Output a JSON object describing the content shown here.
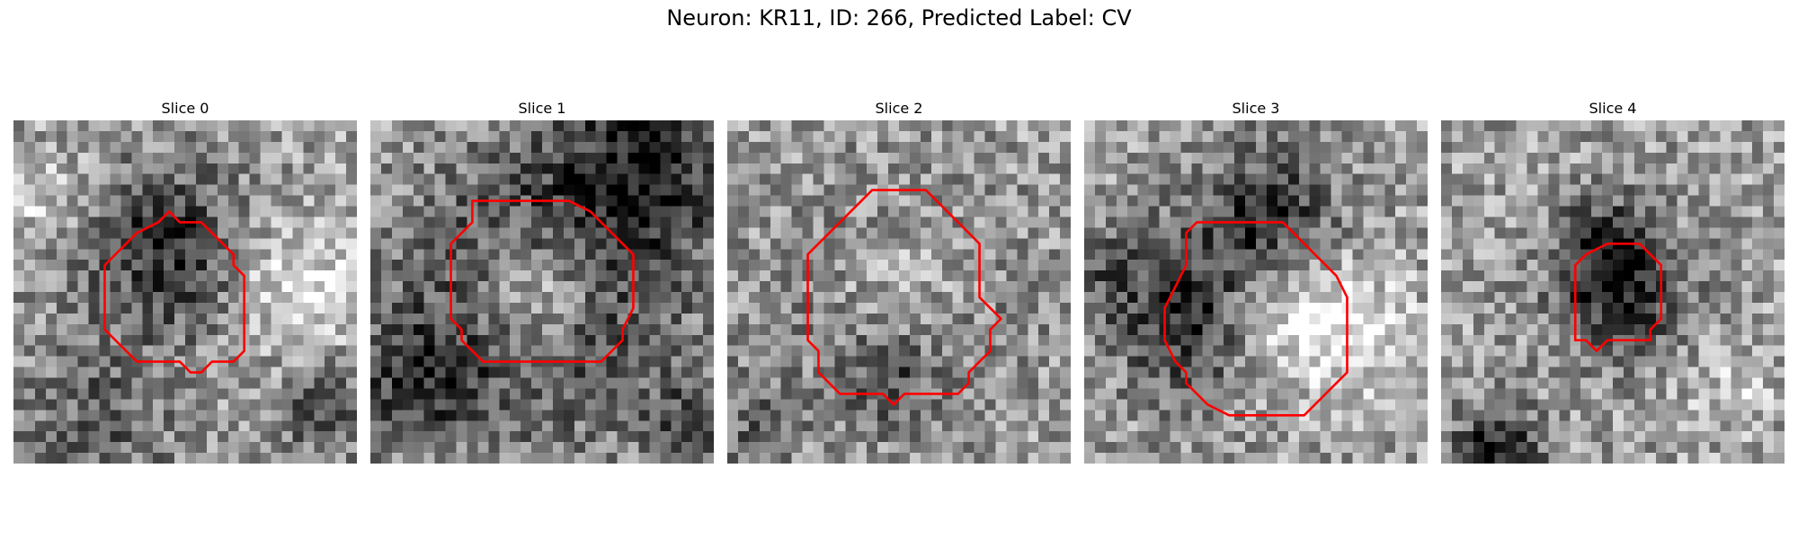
{
  "figure": {
    "title": "Neuron: KR11, ID: 266, Predicted Label: CV"
  },
  "colors": {
    "contour": "#ff0000",
    "background": "#ffffff"
  },
  "panels": [
    {
      "title": "Slice 0",
      "grid_size": 32,
      "seed": 11,
      "blobs": [
        {
          "c": [
            14.5,
            12
          ],
          "r": 5.5,
          "w": -0.45
        },
        {
          "c": [
            26,
            15
          ],
          "r": 4.5,
          "w": 0.3
        },
        {
          "c": [
            8,
            28
          ],
          "r": 5,
          "w": -0.25
        },
        {
          "c": [
            29,
            27
          ],
          "r": 3,
          "w": -0.35
        },
        {
          "c": [
            2,
            7
          ],
          "r": 3,
          "w": 0.2
        }
      ],
      "contour": [
        [
          14.5,
          8.5
        ],
        [
          15.5,
          9.5
        ],
        [
          17.5,
          9.5
        ],
        [
          19.5,
          11.5
        ],
        [
          20.5,
          12.5
        ],
        [
          20.5,
          13.5
        ],
        [
          21.5,
          14.5
        ],
        [
          21.5,
          21.5
        ],
        [
          20.5,
          22.5
        ],
        [
          18.5,
          22.5
        ],
        [
          17.5,
          23.5
        ],
        [
          16.5,
          23.5
        ],
        [
          15.5,
          22.5
        ],
        [
          11.5,
          22.5
        ],
        [
          9.5,
          20.5
        ],
        [
          8.5,
          19.5
        ],
        [
          8.5,
          13.5
        ],
        [
          11.5,
          10.5
        ],
        [
          13.5,
          9.5
        ]
      ]
    },
    {
      "title": "Slice 1",
      "grid_size": 32,
      "seed": 23,
      "blobs": [
        {
          "c": [
            15.5,
            16
          ],
          "r": 8.5,
          "w": -0.55
        },
        {
          "c": [
            15.5,
            16
          ],
          "r": 4.2,
          "w": 0.6
        },
        {
          "c": [
            26,
            4
          ],
          "r": 6,
          "w": -0.45
        },
        {
          "c": [
            4,
            25
          ],
          "r": 4,
          "w": -0.35
        },
        {
          "c": [
            30,
            28
          ],
          "r": 3,
          "w": -0.3
        }
      ],
      "contour": [
        [
          9.5,
          7.5
        ],
        [
          18.5,
          7.5
        ],
        [
          20.5,
          8.5
        ],
        [
          23.5,
          11.5
        ],
        [
          24.5,
          12.5
        ],
        [
          24.5,
          17.5
        ],
        [
          23.5,
          19.5
        ],
        [
          23.5,
          20.5
        ],
        [
          21.5,
          22.5
        ],
        [
          10.5,
          22.5
        ],
        [
          8.5,
          20.5
        ],
        [
          8.5,
          19.5
        ],
        [
          7.5,
          18.5
        ],
        [
          7.5,
          11.5
        ],
        [
          9.5,
          9.5
        ]
      ]
    },
    {
      "title": "Slice 2",
      "grid_size": 32,
      "seed": 37,
      "blobs": [
        {
          "c": [
            15.5,
            16
          ],
          "r": 8.5,
          "w": -0.2
        },
        {
          "c": [
            16,
            15
          ],
          "r": 5,
          "w": 0.25
        },
        {
          "c": [
            15,
            24
          ],
          "r": 3,
          "w": -0.25
        },
        {
          "c": [
            2,
            28
          ],
          "r": 3,
          "w": -0.2
        }
      ],
      "contour": [
        [
          13.5,
          6.5
        ],
        [
          18.5,
          6.5
        ],
        [
          22.5,
          10.5
        ],
        [
          23.5,
          11.5
        ],
        [
          23.5,
          16.5
        ],
        [
          25.5,
          18.5
        ],
        [
          24.5,
          19.5
        ],
        [
          24.5,
          21.5
        ],
        [
          23.5,
          22.5
        ],
        [
          22.5,
          23.5
        ],
        [
          22.5,
          24.5
        ],
        [
          21.5,
          25.5
        ],
        [
          16.5,
          25.5
        ],
        [
          15.5,
          26.5
        ],
        [
          14.5,
          25.5
        ],
        [
          10.5,
          25.5
        ],
        [
          9.5,
          24.5
        ],
        [
          8.5,
          23.5
        ],
        [
          8.5,
          21.5
        ],
        [
          7.5,
          20.5
        ],
        [
          7.5,
          12.5
        ],
        [
          9.5,
          10.5
        ],
        [
          12.5,
          7.5
        ]
      ]
    },
    {
      "title": "Slice 3",
      "grid_size": 32,
      "seed": 53,
      "blobs": [
        {
          "c": [
            11,
            18
          ],
          "r": 5.5,
          "w": -0.55
        },
        {
          "c": [
            17.5,
            9
          ],
          "r": 4.5,
          "w": -0.45
        },
        {
          "c": [
            18,
            18
          ],
          "r": 5,
          "w": 0.45
        },
        {
          "c": [
            1,
            14
          ],
          "r": 3,
          "w": -0.2
        },
        {
          "c": [
            26,
            20
          ],
          "r": 4,
          "w": 0.2
        }
      ],
      "contour": [
        [
          10.5,
          9.5
        ],
        [
          18.5,
          9.5
        ],
        [
          20.5,
          11.5
        ],
        [
          23.5,
          14.5
        ],
        [
          24.5,
          16.5
        ],
        [
          24.5,
          23.5
        ],
        [
          23.5,
          24.5
        ],
        [
          20.5,
          27.5
        ],
        [
          13.5,
          27.5
        ],
        [
          11.5,
          26.5
        ],
        [
          9.5,
          24.5
        ],
        [
          9.5,
          23.5
        ],
        [
          8.5,
          22.5
        ],
        [
          7.5,
          20.5
        ],
        [
          7.5,
          17.5
        ],
        [
          8.5,
          15.5
        ],
        [
          9.5,
          13.5
        ],
        [
          9.5,
          10.5
        ]
      ]
    },
    {
      "title": "Slice 4",
      "grid_size": 32,
      "seed": 71,
      "blobs": [
        {
          "c": [
            16.5,
            16
          ],
          "r": 4.2,
          "w": -0.5
        },
        {
          "c": [
            15.5,
            11
          ],
          "r": 3,
          "w": -0.3
        },
        {
          "c": [
            5,
            31
          ],
          "r": 3,
          "w": -0.5
        },
        {
          "c": [
            27,
            25
          ],
          "r": 3,
          "w": 0.15
        }
      ],
      "contour": [
        [
          15.5,
          11.5
        ],
        [
          18.5,
          11.5
        ],
        [
          20.5,
          13.5
        ],
        [
          20.5,
          18.5
        ],
        [
          19.5,
          19.5
        ],
        [
          19.5,
          20.5
        ],
        [
          15.5,
          20.5
        ],
        [
          14.5,
          21.5
        ],
        [
          13.5,
          20.5
        ],
        [
          12.5,
          20.5
        ],
        [
          12.5,
          13.5
        ],
        [
          13.5,
          12.5
        ]
      ]
    }
  ]
}
